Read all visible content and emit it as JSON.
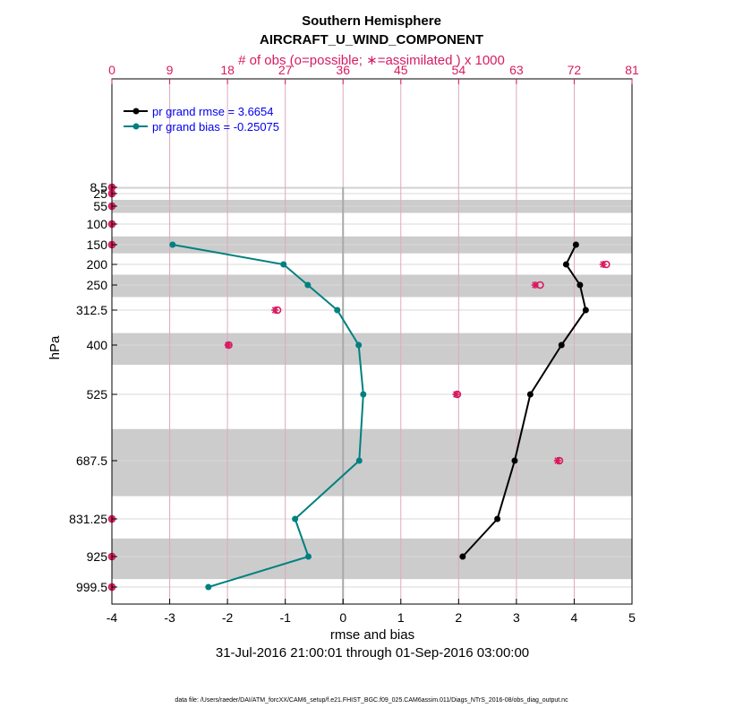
{
  "colors": {
    "rmse": "#000000",
    "bias": "#008080",
    "obs": "#d81b60",
    "band": "#cccccc",
    "legend_text": "#0000ee",
    "zero_line": "#aaaaaa",
    "grid": "#d9d9d9",
    "grid_top": "#dcaabb"
  },
  "chart_data": {
    "type": "line",
    "title": "Southern Hemisphere",
    "subtitle": "AIRCRAFT_U_WIND_COMPONENT",
    "top_axis_label": "# of obs (o=possible; ∗=assimilated ) x 1000",
    "xlabel": "rmse and bias",
    "ylabel": "hPa",
    "date_range": "31-Jul-2016 21:00:01 through 01-Sep-2016 03:00:00",
    "footer": "data file: /Users/raeder/DAI/ATM_forcXX/CAM6_setup/f.e21.FHIST_BGC.f09_025.CAM6assim.011/Diags_NTrS_2016-08/obs_diag_output.nc",
    "xlim": [
      -4,
      5
    ],
    "x_ticks": [
      "-4",
      "-3",
      "-2",
      "-1",
      "0",
      "1",
      "2",
      "3",
      "4",
      "5"
    ],
    "top_xlim": [
      0,
      81
    ],
    "top_ticks": [
      "0",
      "9",
      "18",
      "27",
      "36",
      "45",
      "54",
      "63",
      "72",
      "81"
    ],
    "levels": [
      8.5,
      25,
      55,
      100,
      150,
      200,
      250,
      312.5,
      400,
      525,
      687.5,
      831.25,
      925,
      999.5
    ],
    "level_labels": [
      "8.5",
      "25",
      "55",
      "100",
      "150",
      "200",
      "250",
      "312.5",
      "400",
      "525",
      "687.5",
      "831.25",
      "925",
      "999.5"
    ],
    "series": [
      {
        "name": "pr grand rmse",
        "legend": "pr grand rmse = 3.6654",
        "levels": [
          150,
          200,
          250,
          312.5,
          400,
          525,
          687.5,
          831.25,
          925
        ],
        "values": [
          4.03,
          3.86,
          4.1,
          4.2,
          3.78,
          3.24,
          2.97,
          2.67,
          2.07
        ]
      },
      {
        "name": "pr grand bias",
        "legend": "pr grand bias = -0.25075",
        "levels": [
          150,
          200,
          250,
          312.5,
          400,
          525,
          687.5,
          831.25,
          925,
          999.5
        ],
        "values": [
          -2.95,
          -1.03,
          -0.61,
          -0.1,
          0.27,
          0.35,
          0.28,
          -0.83,
          -0.6,
          -2.33
        ]
      }
    ],
    "obs_counts": {
      "levels": [
        8.5,
        25,
        55,
        100,
        150,
        200,
        250,
        312.5,
        400,
        525,
        687.5,
        831.25,
        925,
        999.5
      ],
      "possible": [
        0,
        0,
        0,
        0,
        0,
        77,
        66.7,
        25.8,
        18.2,
        53.8,
        69.7,
        0,
        0,
        0
      ],
      "assimilated": [
        0,
        0,
        0,
        0,
        0,
        76.5,
        65.9,
        25.4,
        18.1,
        53.6,
        69.4,
        0,
        0,
        0
      ]
    }
  }
}
